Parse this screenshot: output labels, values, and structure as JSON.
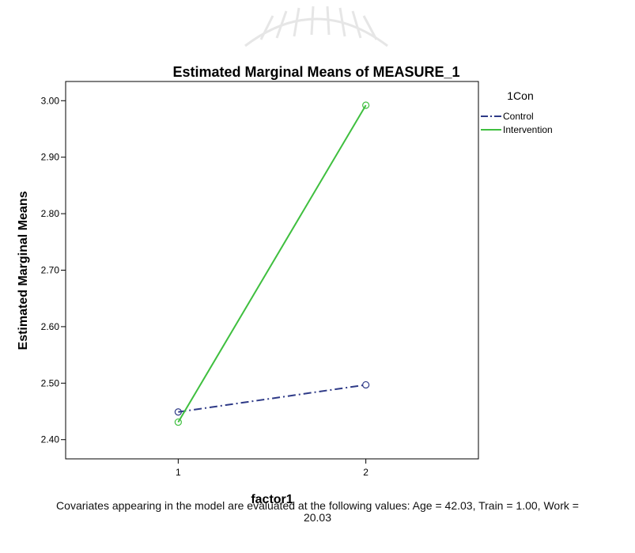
{
  "chart_data": {
    "type": "line",
    "title": "Estimated Marginal Means of MEASURE_1",
    "xlabel": "factor1",
    "ylabel": "Estimated Marginal Means",
    "x": [
      1,
      2
    ],
    "xticks": [
      "1",
      "2"
    ],
    "xlim": [
      0.4,
      2.6
    ],
    "ylim": [
      2.366,
      3.034
    ],
    "yticks": [
      2.4,
      2.5,
      2.6,
      2.7,
      2.8,
      2.9,
      3.0
    ],
    "ytick_labels": [
      "2.40",
      "2.50",
      "2.60",
      "2.70",
      "2.80",
      "2.90",
      "3.00"
    ],
    "grid": false,
    "legend": {
      "title": "1Con",
      "placement": "outside-right"
    },
    "series": [
      {
        "name": "Control",
        "values": [
          2.449,
          2.497
        ],
        "color": "#2e3a87",
        "dash": "dash-dot"
      },
      {
        "name": "Intervention",
        "values": [
          2.431,
          2.992
        ],
        "color": "#3fbf3f",
        "dash": "solid"
      }
    ]
  },
  "footnote": {
    "line1": "Covariates appearing in the model are evaluated at the following values: Age = 42.03, Train = 1.00, Work =",
    "line2": "20.03"
  }
}
